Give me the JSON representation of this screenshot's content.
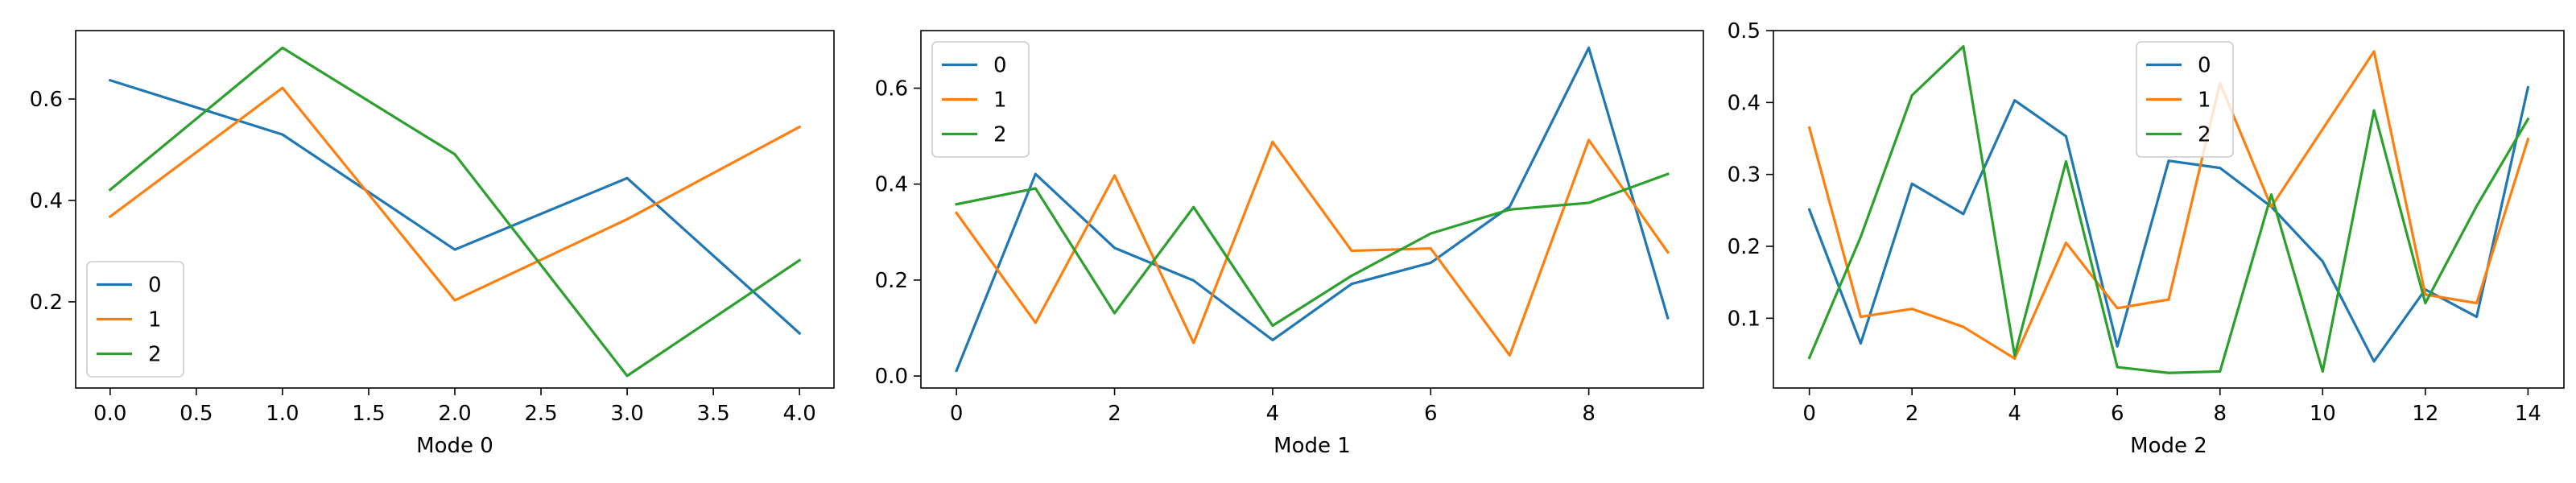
{
  "chart_data": [
    {
      "type": "line",
      "xlabel": "Mode 0",
      "ylabel": "",
      "xlim": [
        -0.2,
        4.2
      ],
      "ylim": [
        0.03,
        0.735
      ],
      "xticks": [
        0,
        0.5,
        1,
        1.5,
        2,
        2.5,
        3,
        3.5,
        4
      ],
      "xtick_labels": [
        "0.0",
        "0.5",
        "1.0",
        "1.5",
        "2.0",
        "2.5",
        "3.0",
        "3.5",
        "4.0"
      ],
      "yticks": [
        0.2,
        0.4,
        0.6
      ],
      "ytick_labels": [
        "0.2",
        "0.4",
        "0.6"
      ],
      "legend_position": "lower-left",
      "x": [
        0,
        1,
        2,
        3,
        4
      ],
      "series": [
        {
          "name": "0",
          "color": "#1f77b4",
          "values": [
            0.637,
            0.53,
            0.303,
            0.444,
            0.138
          ]
        },
        {
          "name": "1",
          "color": "#ff7f0e",
          "values": [
            0.368,
            0.622,
            0.203,
            0.363,
            0.545
          ]
        },
        {
          "name": "2",
          "color": "#2ca02c",
          "values": [
            0.421,
            0.701,
            0.491,
            0.054,
            0.282
          ]
        }
      ]
    },
    {
      "type": "line",
      "xlabel": "Mode 1",
      "ylabel": "",
      "xlim": [
        -0.45,
        9.45
      ],
      "ylim": [
        -0.025,
        0.72
      ],
      "xticks": [
        0,
        2,
        4,
        6,
        8
      ],
      "xtick_labels": [
        "0",
        "2",
        "4",
        "6",
        "8"
      ],
      "yticks": [
        0.0,
        0.2,
        0.4,
        0.6
      ],
      "ytick_labels": [
        "0.0",
        "0.2",
        "0.4",
        "0.6"
      ],
      "legend_position": "upper-left",
      "x": [
        0,
        1,
        2,
        3,
        4,
        5,
        6,
        7,
        8,
        9
      ],
      "series": [
        {
          "name": "0",
          "color": "#1f77b4",
          "values": [
            0.011,
            0.421,
            0.267,
            0.199,
            0.075,
            0.192,
            0.236,
            0.353,
            0.684,
            0.121
          ]
        },
        {
          "name": "1",
          "color": "#ff7f0e",
          "values": [
            0.34,
            0.111,
            0.418,
            0.069,
            0.488,
            0.261,
            0.266,
            0.043,
            0.492,
            0.258
          ]
        },
        {
          "name": "2",
          "color": "#2ca02c",
          "values": [
            0.358,
            0.391,
            0.131,
            0.352,
            0.105,
            0.209,
            0.297,
            0.347,
            0.361,
            0.421
          ]
        }
      ]
    },
    {
      "type": "line",
      "xlabel": "Mode 2",
      "ylabel": "",
      "xlim": [
        -0.7,
        14.7
      ],
      "ylim": [
        0.003,
        0.5
      ],
      "xticks": [
        0,
        2,
        4,
        6,
        8,
        10,
        12,
        14
      ],
      "xtick_labels": [
        "0",
        "2",
        "4",
        "6",
        "8",
        "10",
        "12",
        "14"
      ],
      "yticks": [
        0.1,
        0.2,
        0.3,
        0.4,
        0.5
      ],
      "ytick_labels": [
        "0.1",
        "0.2",
        "0.3",
        "0.4",
        "0.5"
      ],
      "legend_position": "upper-center",
      "x": [
        0,
        1,
        2,
        3,
        4,
        5,
        6,
        7,
        8,
        9,
        10,
        11,
        12,
        13,
        14
      ],
      "series": [
        {
          "name": "0",
          "color": "#1f77b4",
          "values": [
            0.251,
            0.065,
            0.287,
            0.245,
            0.403,
            0.353,
            0.061,
            0.319,
            0.309,
            0.255,
            0.179,
            0.04,
            0.14,
            0.102,
            0.421
          ]
        },
        {
          "name": "1",
          "color": "#ff7f0e",
          "values": [
            0.365,
            0.102,
            0.113,
            0.088,
            0.044,
            0.205,
            0.114,
            0.126,
            0.427,
            0.255,
            0.363,
            0.471,
            0.133,
            0.121,
            0.349
          ]
        },
        {
          "name": "2",
          "color": "#2ca02c",
          "values": [
            0.045,
            0.213,
            0.41,
            0.478,
            0.048,
            0.318,
            0.032,
            0.024,
            0.026,
            0.272,
            0.026,
            0.389,
            0.121,
            0.256,
            0.377
          ]
        }
      ]
    }
  ]
}
